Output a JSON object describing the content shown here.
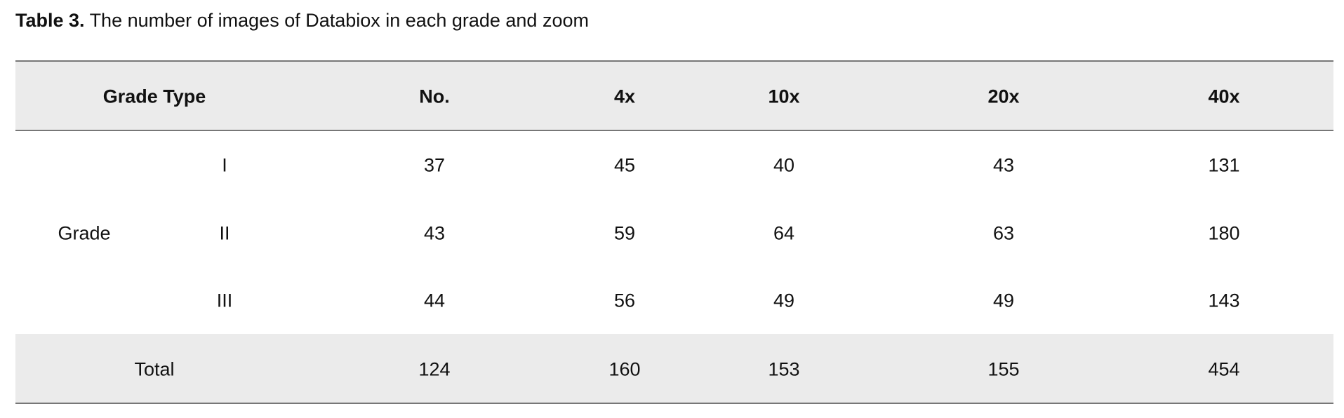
{
  "caption": {
    "label": "Table 3.",
    "text": "The number of images of Databiox in each grade and zoom"
  },
  "table": {
    "header": [
      "Grade Type",
      "No.",
      "4x",
      "10x",
      "20x",
      "40x"
    ],
    "group": "Grade",
    "rows": [
      [
        "I",
        37,
        45,
        40,
        43,
        131
      ],
      [
        "II",
        43,
        59,
        64,
        63,
        180
      ],
      [
        "III",
        44,
        56,
        49,
        49,
        143
      ]
    ],
    "total": [
      "Total",
      124,
      160,
      153,
      155,
      454
    ]
  }
}
